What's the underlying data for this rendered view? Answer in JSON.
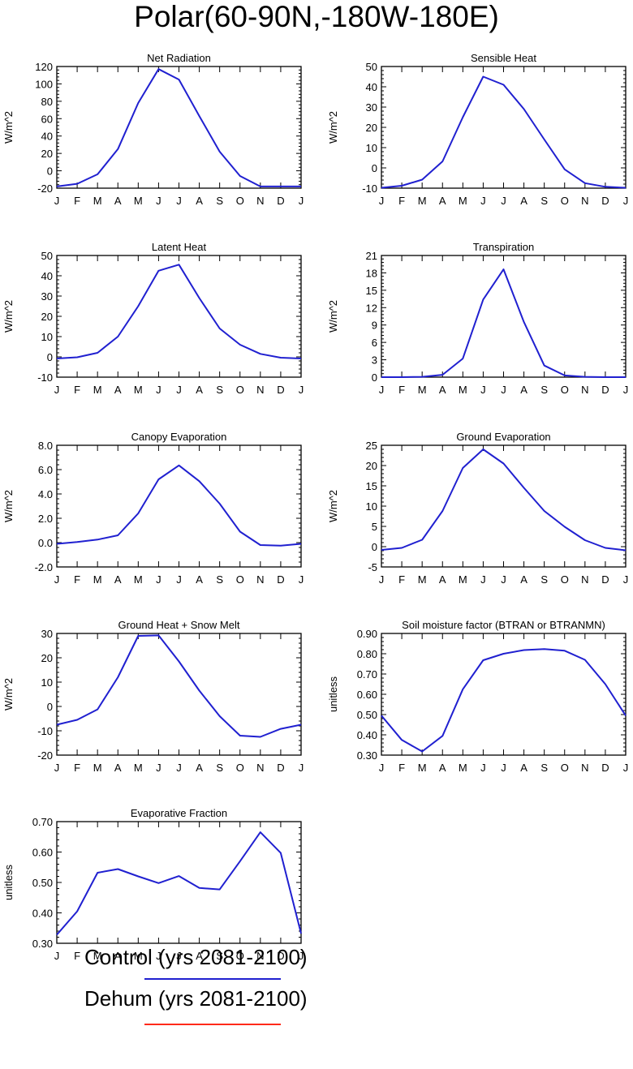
{
  "title": "Polar(60-90N,-180W-180E)",
  "months": [
    "J",
    "F",
    "M",
    "A",
    "M",
    "J",
    "J",
    "A",
    "S",
    "O",
    "N",
    "D",
    "J"
  ],
  "colors": {
    "control": "#2020d0",
    "dehum": "#ff2a1a",
    "axis": "#000000"
  },
  "legend": {
    "control_label": "Control (yrs 2081-2100)",
    "dehum_label": "Dehum (yrs 2081-2100)"
  },
  "chart_data": [
    {
      "type": "line",
      "title": "Net Radiation",
      "ylabel": "W/m^2",
      "ylim": [
        -20,
        120
      ],
      "yticks": [
        "-20",
        "0",
        "20",
        "40",
        "60",
        "80",
        "100",
        "120"
      ],
      "series": [
        {
          "name": "Control (yrs 2081-2100)",
          "values": [
            -18,
            -15,
            -4,
            25,
            78,
            117,
            105,
            63,
            22,
            -6,
            -18,
            -18,
            -18
          ]
        }
      ]
    },
    {
      "type": "line",
      "title": "Sensible Heat",
      "ylabel": "W/m^2",
      "ylim": [
        -10,
        50
      ],
      "yticks": [
        "-10",
        "0",
        "10",
        "20",
        "30",
        "40",
        "50"
      ],
      "series": [
        {
          "name": "Control (yrs 2081-2100)",
          "values": [
            -9.8,
            -8.8,
            -5.8,
            3.2,
            25,
            45,
            41,
            29,
            14,
            -0.7,
            -7.5,
            -9.3,
            -9.8
          ]
        }
      ]
    },
    {
      "type": "line",
      "title": "Latent Heat",
      "ylabel": "W/m^2",
      "ylim": [
        -10,
        50
      ],
      "yticks": [
        "-10",
        "0",
        "10",
        "20",
        "30",
        "40",
        "50"
      ],
      "series": [
        {
          "name": "Control (yrs 2081-2100)",
          "values": [
            -0.8,
            -0.2,
            2,
            10,
            25,
            42.5,
            45.5,
            29,
            14,
            6,
            1.5,
            -0.4,
            -0.8
          ]
        }
      ]
    },
    {
      "type": "line",
      "title": "Transpiration",
      "ylabel": "W/m^2",
      "ylim": [
        0,
        21
      ],
      "yticks": [
        "0",
        "3",
        "6",
        "9",
        "12",
        "15",
        "18",
        "21"
      ],
      "series": [
        {
          "name": "Control (yrs 2081-2100)",
          "values": [
            0,
            0,
            0.05,
            0.4,
            3.2,
            13.4,
            18.6,
            9.5,
            2,
            0.3,
            0.05,
            0,
            0
          ]
        }
      ]
    },
    {
      "type": "line",
      "title": "Canopy Evaporation",
      "ylabel": "W/m^2",
      "ylim": [
        -2,
        8
      ],
      "yticks": [
        "-2.0",
        "0.0",
        "2.0",
        "4.0",
        "6.0",
        "8.0"
      ],
      "series": [
        {
          "name": "Control (yrs 2081-2100)",
          "values": [
            -0.1,
            0.05,
            0.25,
            0.6,
            2.4,
            5.2,
            6.35,
            5.05,
            3.2,
            0.9,
            -0.2,
            -0.25,
            -0.1
          ]
        }
      ]
    },
    {
      "type": "line",
      "title": "Ground Evaporation",
      "ylabel": "W/m^2",
      "ylim": [
        -5,
        25
      ],
      "yticks": [
        "-5",
        "0",
        "5",
        "10",
        "15",
        "20",
        "25"
      ],
      "series": [
        {
          "name": "Control (yrs 2081-2100)",
          "values": [
            -0.8,
            -0.3,
            1.7,
            8.8,
            19.4,
            24,
            20.5,
            14.5,
            8.8,
            4.9,
            1.6,
            -0.3,
            -0.9
          ]
        }
      ]
    },
    {
      "type": "line",
      "title": "Ground Heat + Snow Melt",
      "ylabel": "W/m^2",
      "ylim": [
        -20,
        30
      ],
      "yticks": [
        "-20",
        "-10",
        "0",
        "10",
        "20",
        "30"
      ],
      "series": [
        {
          "name": "Control (yrs 2081-2100)",
          "values": [
            -7.5,
            -5.5,
            -1.2,
            12,
            29,
            29.2,
            18.5,
            6.5,
            -4,
            -12,
            -12.5,
            -9.2,
            -7.5
          ]
        }
      ]
    },
    {
      "type": "line",
      "title": "Soil moisture factor (BTRAN or BTRANMN)",
      "ylabel": "unitless",
      "ylim": [
        0.3,
        0.9
      ],
      "yticks": [
        "0.30",
        "0.40",
        "0.50",
        "0.60",
        "0.70",
        "0.80",
        "0.90"
      ],
      "series": [
        {
          "name": "Control (yrs 2081-2100)",
          "values": [
            0.495,
            0.375,
            0.318,
            0.395,
            0.625,
            0.768,
            0.8,
            0.818,
            0.823,
            0.815,
            0.77,
            0.65,
            0.495
          ]
        }
      ]
    },
    {
      "type": "line",
      "title": "Evaporative Fraction",
      "ylabel": "unitless",
      "ylim": [
        0.3,
        0.7
      ],
      "yticks": [
        "0.30",
        "0.40",
        "0.50",
        "0.60",
        "0.70"
      ],
      "series": [
        {
          "name": "Control (yrs 2081-2100)",
          "values": [
            0.328,
            0.405,
            0.532,
            0.544,
            0.52,
            0.498,
            0.521,
            0.482,
            0.477,
            0.57,
            0.665,
            0.597,
            0.332
          ]
        }
      ]
    }
  ]
}
